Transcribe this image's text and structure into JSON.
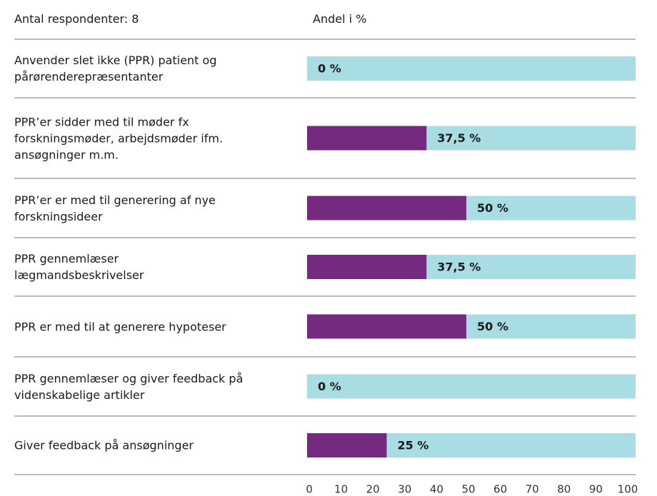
{
  "chart_data": {
    "type": "bar",
    "orientation": "horizontal",
    "header_left": "Antal respondenter: 8",
    "header_right": "Andel i %",
    "categories": [
      "Anvender slet  ikke  (PPR) patient og\npårørenderepræsentanter",
      "PPR’er sidder med til møder fx\nforskningsmøder, arbejdsmøder ifm.\nansøgninger m.m.",
      "PPR’er er med til generering af nye\nforskningsideer",
      "PPR gennemlæser\nlægmandsbeskrivelser",
      "PPR er med til at generere hypoteser",
      "PPR gennemlæser og giver feedback på\nvidenskabelige artikler",
      "Giver feedback på ansøgninger"
    ],
    "values": [
      0,
      37.5,
      50,
      37.5,
      50,
      0,
      25
    ],
    "value_labels": [
      "0 %",
      "37,5 %",
      "50 %",
      "37,5 %",
      "50 %",
      "0 %",
      "25 %"
    ],
    "color": "#732a7f",
    "track_color": "#a9dde4",
    "xlim": [
      0,
      100
    ],
    "xticks": [
      0,
      10,
      20,
      30,
      40,
      50,
      60,
      70,
      80,
      90,
      100
    ]
  }
}
